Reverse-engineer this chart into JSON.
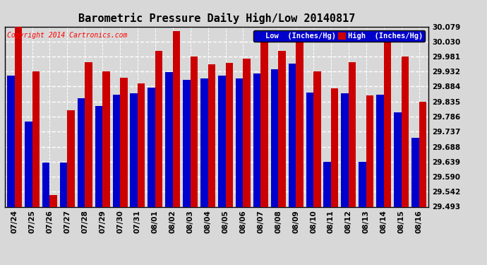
{
  "title": "Barometric Pressure Daily High/Low 20140817",
  "copyright": "Copyright 2014 Cartronics.com",
  "legend_low": "Low  (Inches/Hg)",
  "legend_high": "High  (Inches/Hg)",
  "dates": [
    "07/24",
    "07/25",
    "07/26",
    "07/27",
    "07/28",
    "07/29",
    "07/30",
    "07/31",
    "08/01",
    "08/02",
    "08/03",
    "08/04",
    "08/05",
    "08/06",
    "08/07",
    "08/08",
    "08/09",
    "08/10",
    "08/11",
    "08/12",
    "08/13",
    "08/14",
    "08/15",
    "08/16"
  ],
  "low": [
    29.92,
    29.77,
    29.636,
    29.636,
    29.845,
    29.82,
    29.858,
    29.862,
    29.88,
    29.93,
    29.905,
    29.91,
    29.92,
    29.91,
    29.926,
    29.94,
    29.958,
    29.863,
    29.64,
    29.862,
    29.64,
    29.858,
    29.8,
    29.718
  ],
  "high": [
    30.079,
    29.932,
    29.53,
    29.807,
    29.963,
    29.932,
    29.912,
    29.893,
    30.0,
    30.063,
    29.981,
    29.956,
    29.961,
    29.975,
    30.03,
    30.0,
    30.03,
    29.932,
    29.878,
    29.963,
    29.855,
    30.03,
    29.981,
    29.835
  ],
  "ylim_min": 29.493,
  "ylim_max": 30.079,
  "yticks": [
    29.493,
    29.542,
    29.59,
    29.639,
    29.688,
    29.737,
    29.786,
    29.835,
    29.884,
    29.932,
    29.981,
    30.03,
    30.079
  ],
  "low_color": "#0000cc",
  "high_color": "#cc0000",
  "bg_color": "#d8d8d8",
  "grid_color": "#ffffff",
  "bar_width": 0.42,
  "title_fontsize": 11,
  "tick_fontsize": 7.5,
  "legend_fontsize": 7.5
}
